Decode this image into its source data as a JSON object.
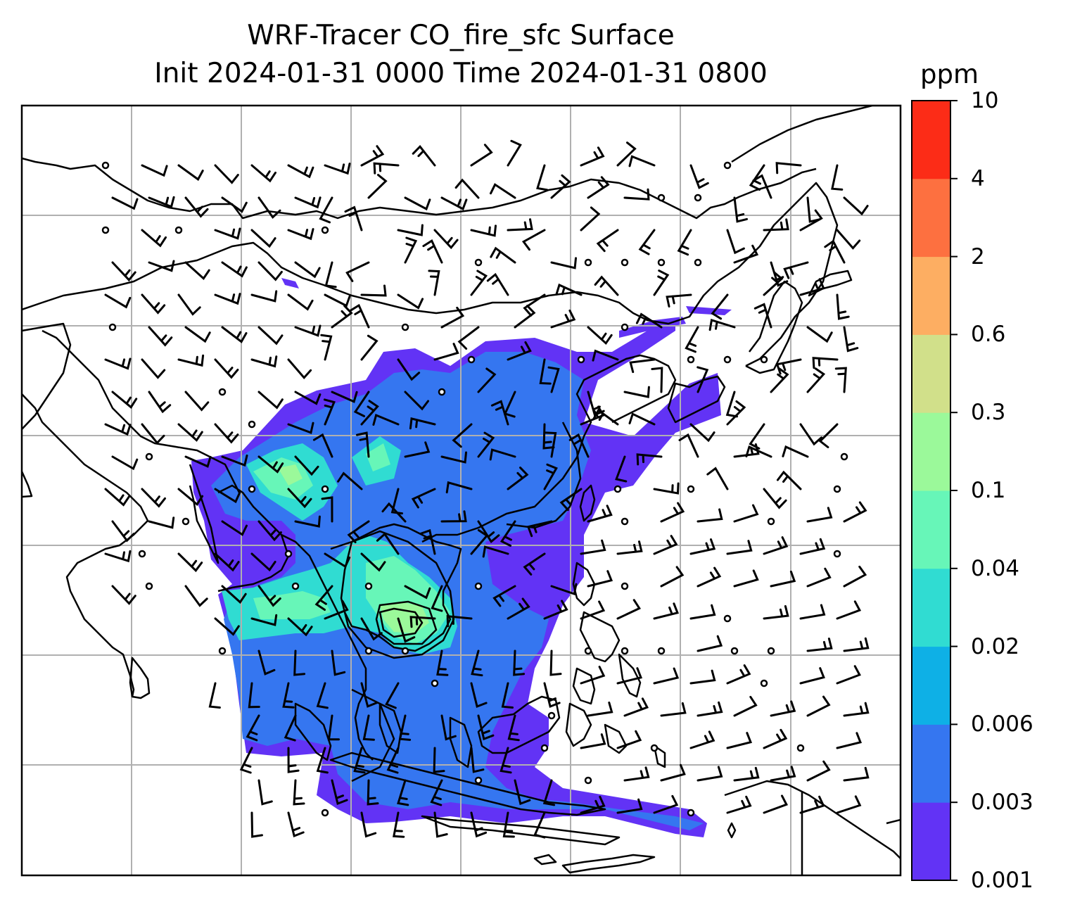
{
  "title_line1": "WRF-Tracer CO_fire_sfc Surface",
  "title_line2": "Init 2024-01-31 0000 Time 2024-01-31 0800",
  "colorbar": {
    "unit": "ppm",
    "levels": [
      "0.001",
      "0.003",
      "0.006",
      "0.02",
      "0.04",
      "0.1",
      "0.3",
      "0.6",
      "2",
      "4",
      "10"
    ],
    "colors": [
      "#6233f5",
      "#3576f0",
      "#0eb0e6",
      "#30dcd2",
      "#67f6b8",
      "#9bf99a",
      "#d1e08a",
      "#fdae62",
      "#fd7040",
      "#fc2c17"
    ]
  },
  "map": {
    "field_colors": {
      "lowest": "#6233f5",
      "low": "#3576f0",
      "mid": "#30dcd2",
      "midhigh": "#67f6b8",
      "high": "#9bf99a"
    },
    "gridline_color": "#b0b0b0",
    "coast_color": "#000000"
  }
}
